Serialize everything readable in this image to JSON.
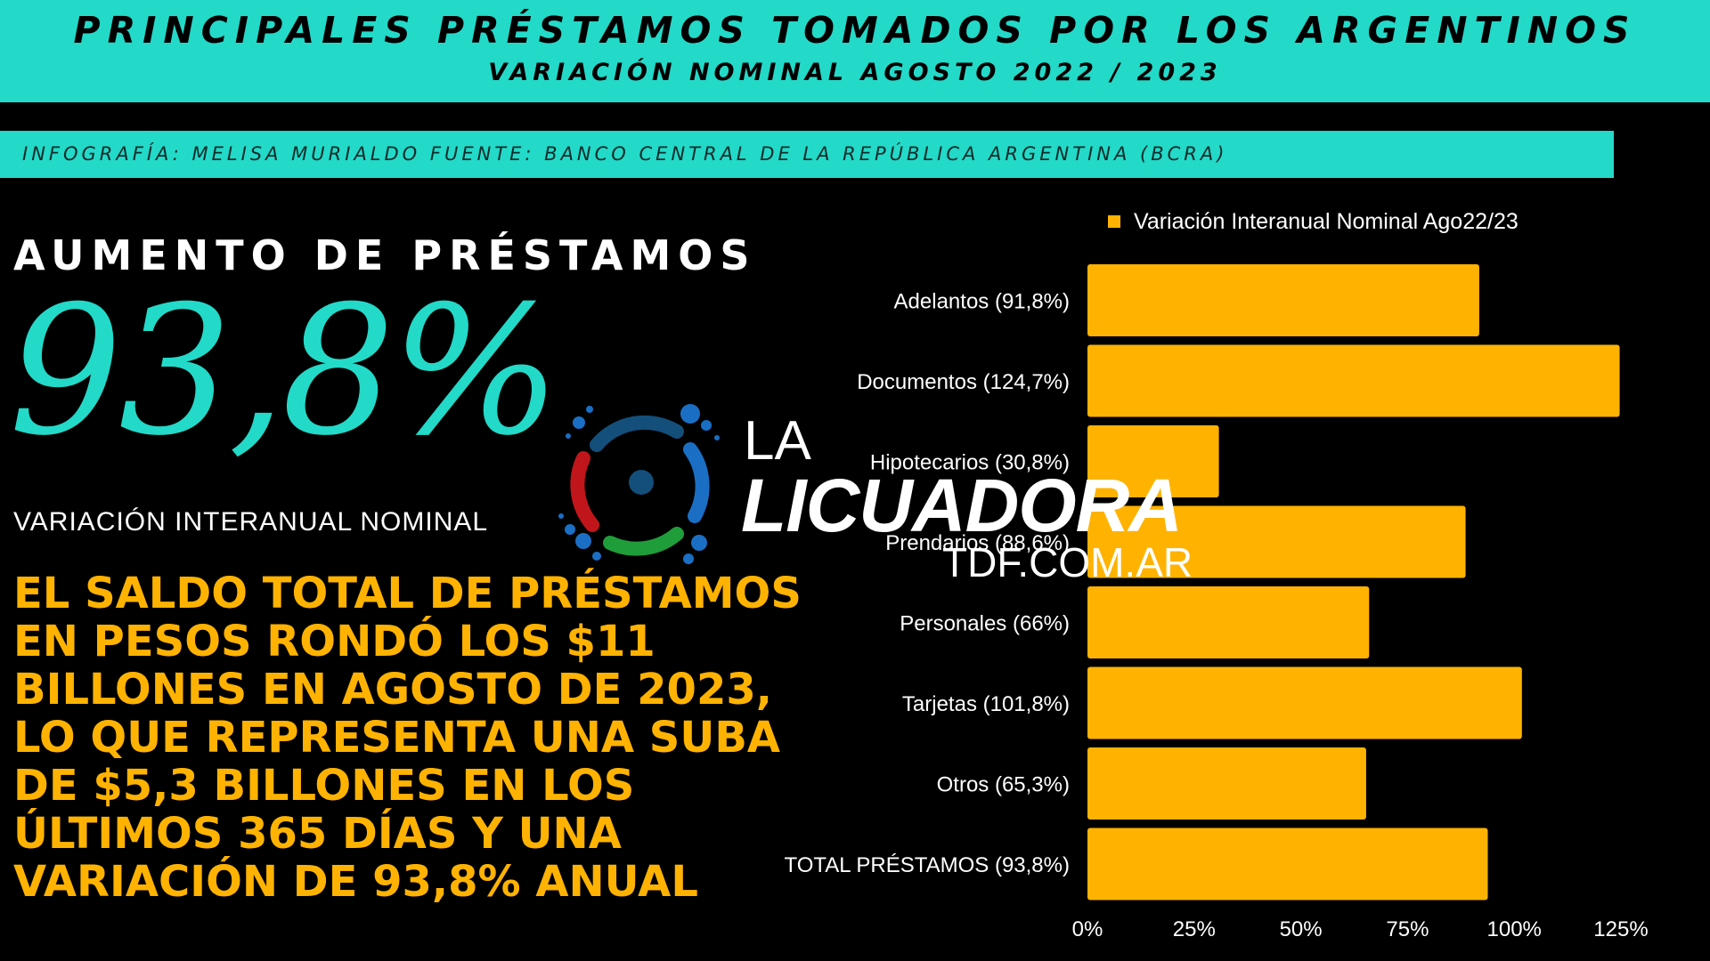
{
  "header": {
    "title": "PRINCIPALES PRÉSTAMOS TOMADOS POR LOS ARGENTINOS",
    "subtitle": "VARIACIÓN NOMINAL AGOSTO 2022 / 2023"
  },
  "credit": "INFOGRAFÍA: MELISA MURIALDO FUENTE: BANCO CENTRAL DE LA REPÚBLICA ARGENTINA (BCRA)",
  "highlight": {
    "heading": "AUMENTO DE PRÉSTAMOS",
    "value": "93,8%",
    "caption": "VARIACIÓN INTERANUAL NOMINAL"
  },
  "body_text": "EL SALDO TOTAL DE PRÉSTAMOS EN PESOS RONDÓ LOS $11 BILLONES EN AGOSTO DE 2023, LO QUE REPRESENTA UNA SUBA DE $5,3 BILLONES EN LOS ÚLTIMOS 365 DÍAS Y UNA VARIACIÓN DE 93,8% ANUAL",
  "logo": {
    "line1": "LA",
    "line2": "LICUADORA",
    "line3": "TDF.COM.AR",
    "colors": [
      "#1a6fc4",
      "#c0161b",
      "#1f9d3a",
      "#134f7a"
    ]
  },
  "colors": {
    "accent": "#23d9c8",
    "bar": "#ffb300",
    "background": "#000000",
    "text": "#ffffff"
  },
  "chart_data": {
    "type": "bar",
    "orientation": "horizontal",
    "categories": [
      "Adelantos (91,8%)",
      "Documentos (124,7%)",
      "Hipotecarios (30,8%)",
      "Prendarios (88,6%)",
      "Personales (66%)",
      "Tarjetas (101,8%)",
      "Otros (65,3%)",
      "TOTAL PRÉSTAMOS (93,8%)"
    ],
    "series": [
      {
        "name": "Variación Interanual Nominal Ago22/23",
        "values": [
          91.8,
          124.7,
          30.8,
          88.6,
          66,
          101.8,
          65.3,
          93.8
        ]
      }
    ],
    "xlim": [
      0,
      125
    ],
    "xticks": [
      "0%",
      "25%",
      "50%",
      "75%",
      "100%",
      "125%"
    ],
    "legend": "top",
    "grid": false
  }
}
